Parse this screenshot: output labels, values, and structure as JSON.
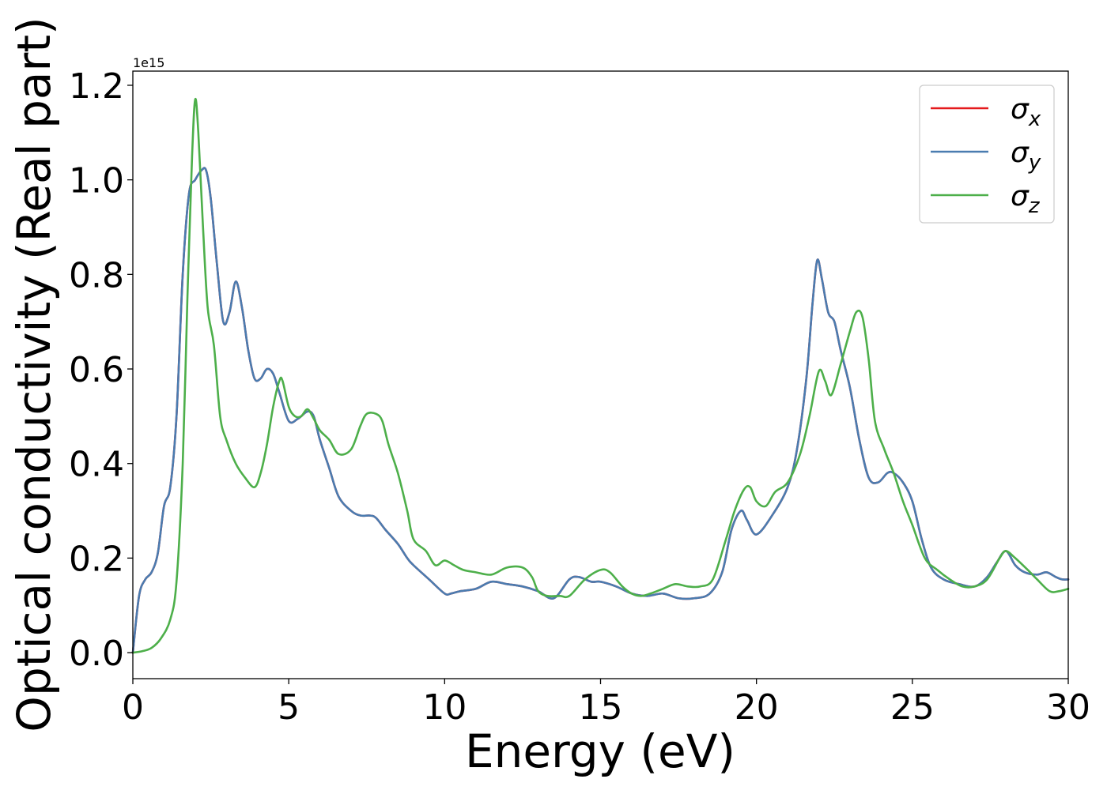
{
  "chart_data": {
    "type": "line",
    "xlabel": "Energy (eV)",
    "ylabel": "Optical conductivity (Real part)",
    "offset_label": "1e15",
    "y_scale_factor": 1000000000000000.0,
    "xlim": [
      0,
      30
    ],
    "ylim": [
      -0.055,
      1.23
    ],
    "xticks": [
      0,
      5,
      10,
      15,
      20,
      25,
      30
    ],
    "xtick_labels": [
      "0",
      "5",
      "10",
      "15",
      "20",
      "25",
      "30"
    ],
    "yticks": [
      0.0,
      0.2,
      0.4,
      0.6,
      0.8,
      1.0,
      1.2
    ],
    "ytick_labels": [
      "0.0",
      "0.2",
      "0.4",
      "0.6",
      "0.8",
      "1.0",
      "1.2"
    ],
    "grid": false,
    "legend_position": "top-right",
    "series": [
      {
        "name": "σx",
        "legend_base": "σ",
        "legend_sub": "x",
        "color": "#e41a1c",
        "x": [
          0,
          0.2,
          0.4,
          0.6,
          0.8,
          1.0,
          1.2,
          1.4,
          1.6,
          1.8,
          2.0,
          2.2,
          2.35,
          2.5,
          2.7,
          2.9,
          3.1,
          3.3,
          3.5,
          3.7,
          3.9,
          4.1,
          4.3,
          4.5,
          4.7,
          5.0,
          5.3,
          5.6,
          5.8,
          6.0,
          6.3,
          6.6,
          7.0,
          7.3,
          7.6,
          7.8,
          8.1,
          8.5,
          8.8,
          9.0,
          9.5,
          10.0,
          10.2,
          10.5,
          11.0,
          11.5,
          12.0,
          12.5,
          13.0,
          13.5,
          14.0,
          14.3,
          14.7,
          15.0,
          15.5,
          16.0,
          16.5,
          17.0,
          17.5,
          18.0,
          18.5,
          18.9,
          19.2,
          19.5,
          19.7,
          20.0,
          20.5,
          21.0,
          21.3,
          21.6,
          21.8,
          21.95,
          22.1,
          22.3,
          22.5,
          22.7,
          23.0,
          23.3,
          23.6,
          23.9,
          24.2,
          24.4,
          24.7,
          25.0,
          25.3,
          25.6,
          26.0,
          26.5,
          27.0,
          27.4,
          27.7,
          28.0,
          28.3,
          28.6,
          29.0,
          29.3,
          29.6,
          29.8,
          30.0
        ],
        "y": [
          0.0,
          0.12,
          0.155,
          0.17,
          0.21,
          0.31,
          0.35,
          0.5,
          0.8,
          0.97,
          1.0,
          1.02,
          1.02,
          0.96,
          0.82,
          0.7,
          0.72,
          0.785,
          0.73,
          0.64,
          0.58,
          0.58,
          0.6,
          0.59,
          0.55,
          0.49,
          0.495,
          0.51,
          0.5,
          0.45,
          0.39,
          0.33,
          0.3,
          0.29,
          0.29,
          0.285,
          0.26,
          0.23,
          0.2,
          0.185,
          0.155,
          0.125,
          0.125,
          0.13,
          0.135,
          0.15,
          0.145,
          0.14,
          0.13,
          0.115,
          0.155,
          0.16,
          0.15,
          0.15,
          0.14,
          0.125,
          0.12,
          0.125,
          0.115,
          0.115,
          0.125,
          0.17,
          0.26,
          0.3,
          0.28,
          0.25,
          0.29,
          0.35,
          0.43,
          0.58,
          0.74,
          0.83,
          0.79,
          0.72,
          0.7,
          0.64,
          0.56,
          0.45,
          0.37,
          0.36,
          0.38,
          0.38,
          0.36,
          0.32,
          0.24,
          0.18,
          0.155,
          0.145,
          0.14,
          0.16,
          0.19,
          0.215,
          0.185,
          0.17,
          0.165,
          0.17,
          0.16,
          0.155,
          0.155
        ]
      },
      {
        "name": "σy",
        "legend_base": "σ",
        "legend_sub": "y",
        "color": "#4a7cb0",
        "x": [
          0,
          0.2,
          0.4,
          0.6,
          0.8,
          1.0,
          1.2,
          1.4,
          1.6,
          1.8,
          2.0,
          2.2,
          2.35,
          2.5,
          2.7,
          2.9,
          3.1,
          3.3,
          3.5,
          3.7,
          3.9,
          4.1,
          4.3,
          4.5,
          4.7,
          5.0,
          5.3,
          5.6,
          5.8,
          6.0,
          6.3,
          6.6,
          7.0,
          7.3,
          7.6,
          7.8,
          8.1,
          8.5,
          8.8,
          9.0,
          9.5,
          10.0,
          10.2,
          10.5,
          11.0,
          11.5,
          12.0,
          12.5,
          13.0,
          13.5,
          14.0,
          14.3,
          14.7,
          15.0,
          15.5,
          16.0,
          16.5,
          17.0,
          17.5,
          18.0,
          18.5,
          18.9,
          19.2,
          19.5,
          19.7,
          20.0,
          20.5,
          21.0,
          21.3,
          21.6,
          21.8,
          21.95,
          22.1,
          22.3,
          22.5,
          22.7,
          23.0,
          23.3,
          23.6,
          23.9,
          24.2,
          24.4,
          24.7,
          25.0,
          25.3,
          25.6,
          26.0,
          26.5,
          27.0,
          27.4,
          27.7,
          28.0,
          28.3,
          28.6,
          29.0,
          29.3,
          29.6,
          29.8,
          30.0
        ],
        "y": [
          0.0,
          0.12,
          0.155,
          0.17,
          0.21,
          0.31,
          0.35,
          0.5,
          0.8,
          0.97,
          1.0,
          1.02,
          1.02,
          0.96,
          0.82,
          0.7,
          0.72,
          0.785,
          0.73,
          0.64,
          0.58,
          0.58,
          0.6,
          0.59,
          0.55,
          0.49,
          0.495,
          0.51,
          0.5,
          0.45,
          0.39,
          0.33,
          0.3,
          0.29,
          0.29,
          0.285,
          0.26,
          0.23,
          0.2,
          0.185,
          0.155,
          0.125,
          0.125,
          0.13,
          0.135,
          0.15,
          0.145,
          0.14,
          0.13,
          0.115,
          0.155,
          0.16,
          0.15,
          0.15,
          0.14,
          0.125,
          0.12,
          0.125,
          0.115,
          0.115,
          0.125,
          0.17,
          0.26,
          0.3,
          0.28,
          0.25,
          0.29,
          0.35,
          0.43,
          0.58,
          0.74,
          0.83,
          0.79,
          0.72,
          0.7,
          0.64,
          0.56,
          0.45,
          0.37,
          0.36,
          0.38,
          0.38,
          0.36,
          0.32,
          0.24,
          0.18,
          0.155,
          0.145,
          0.14,
          0.16,
          0.19,
          0.215,
          0.185,
          0.17,
          0.165,
          0.17,
          0.16,
          0.155,
          0.155
        ]
      },
      {
        "name": "σz",
        "legend_base": "σ",
        "legend_sub": "z",
        "color": "#4daf4a",
        "x": [
          0,
          0.3,
          0.6,
          0.9,
          1.2,
          1.4,
          1.6,
          1.75,
          1.9,
          2.0,
          2.1,
          2.25,
          2.4,
          2.6,
          2.8,
          3.0,
          3.3,
          3.6,
          3.9,
          4.1,
          4.3,
          4.5,
          4.7,
          4.8,
          5.0,
          5.2,
          5.4,
          5.6,
          5.8,
          6.0,
          6.3,
          6.6,
          7.0,
          7.3,
          7.5,
          7.8,
          8.0,
          8.2,
          8.5,
          8.8,
          9.0,
          9.4,
          9.7,
          10.0,
          10.3,
          10.6,
          11.0,
          11.5,
          12.0,
          12.5,
          12.8,
          13.0,
          13.3,
          13.7,
          14.0,
          14.5,
          15.0,
          15.3,
          15.7,
          16.0,
          16.3,
          16.6,
          17.0,
          17.4,
          17.8,
          18.2,
          18.6,
          19.0,
          19.3,
          19.6,
          19.8,
          20.0,
          20.3,
          20.6,
          21.0,
          21.4,
          21.7,
          22.0,
          22.2,
          22.4,
          22.7,
          23.0,
          23.2,
          23.4,
          23.6,
          23.8,
          24.1,
          24.4,
          24.7,
          25.0,
          25.4,
          25.8,
          26.2,
          26.6,
          27.0,
          27.4,
          27.8,
          28.0,
          28.3,
          28.7,
          29.0,
          29.4,
          29.7,
          30.0
        ],
        "y": [
          0.0,
          0.003,
          0.01,
          0.03,
          0.07,
          0.15,
          0.4,
          0.75,
          1.05,
          1.17,
          1.1,
          0.9,
          0.73,
          0.65,
          0.5,
          0.45,
          0.4,
          0.37,
          0.35,
          0.38,
          0.44,
          0.52,
          0.575,
          0.575,
          0.52,
          0.5,
          0.5,
          0.515,
          0.495,
          0.47,
          0.45,
          0.42,
          0.43,
          0.48,
          0.505,
          0.505,
          0.49,
          0.44,
          0.38,
          0.3,
          0.24,
          0.215,
          0.185,
          0.195,
          0.185,
          0.175,
          0.17,
          0.165,
          0.18,
          0.18,
          0.16,
          0.13,
          0.12,
          0.12,
          0.12,
          0.155,
          0.175,
          0.17,
          0.14,
          0.125,
          0.12,
          0.125,
          0.135,
          0.145,
          0.14,
          0.14,
          0.155,
          0.235,
          0.3,
          0.345,
          0.35,
          0.32,
          0.31,
          0.34,
          0.36,
          0.42,
          0.5,
          0.595,
          0.575,
          0.545,
          0.61,
          0.68,
          0.72,
          0.71,
          0.62,
          0.49,
          0.43,
          0.38,
          0.32,
          0.27,
          0.2,
          0.175,
          0.155,
          0.14,
          0.14,
          0.155,
          0.2,
          0.215,
          0.2,
          0.175,
          0.155,
          0.13,
          0.13,
          0.135
        ]
      }
    ]
  }
}
